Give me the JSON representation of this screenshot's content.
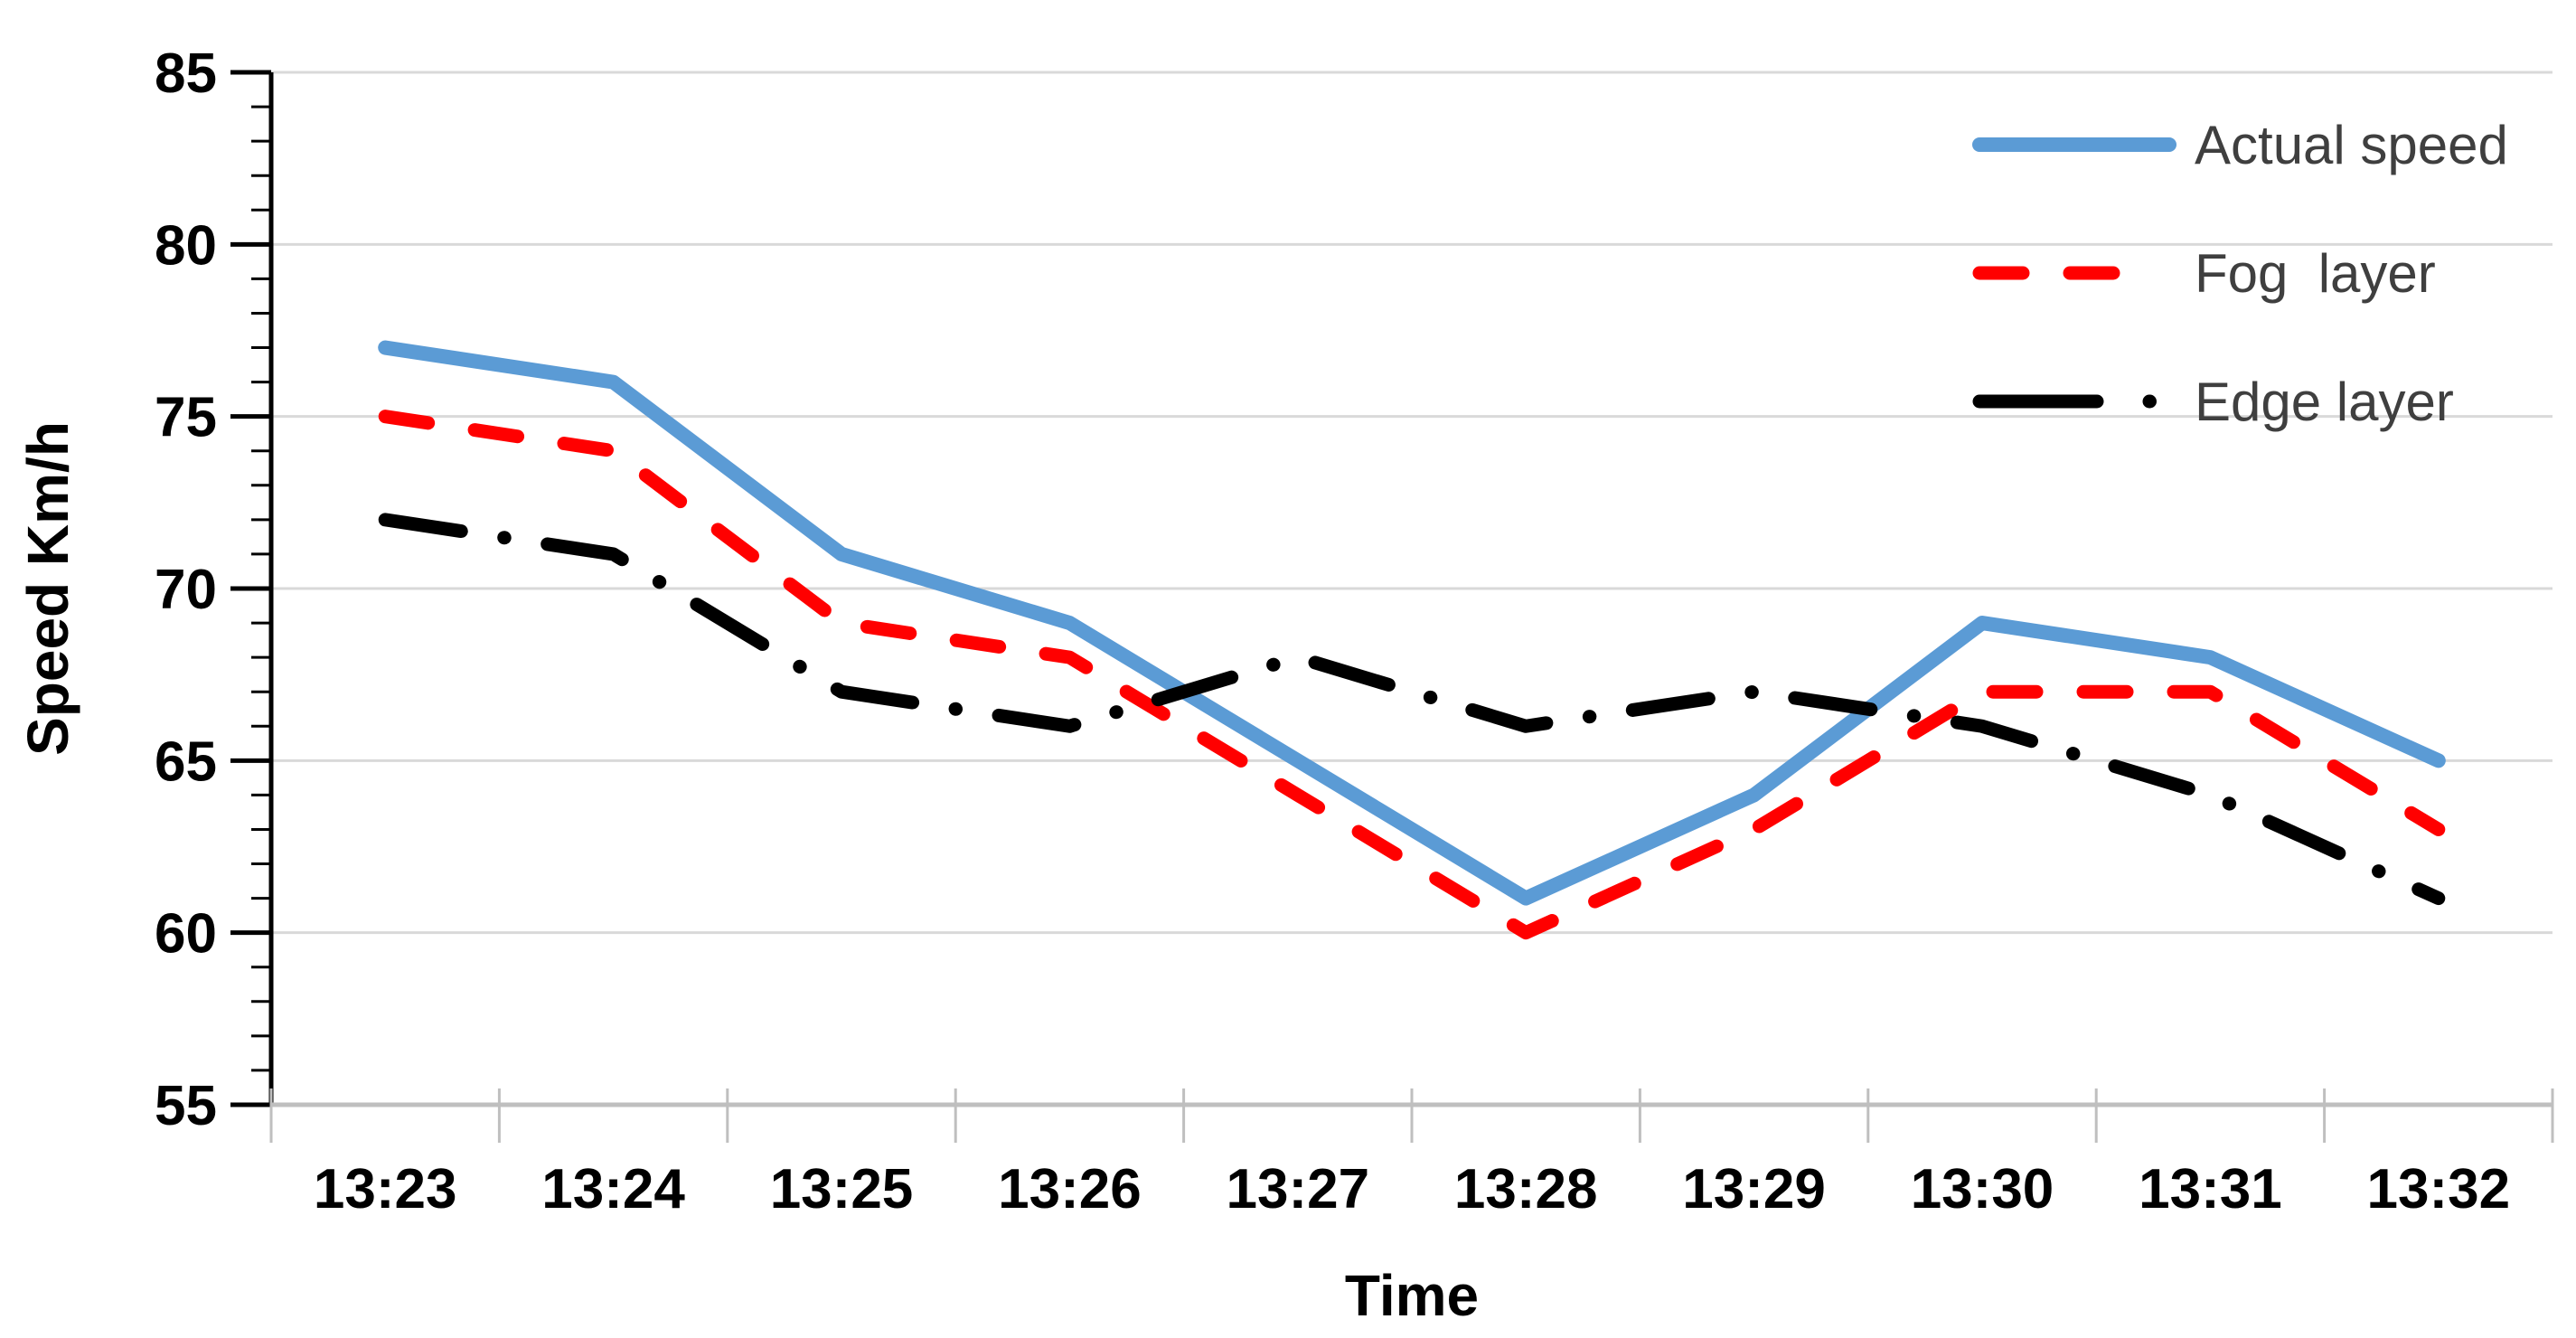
{
  "figure": {
    "background": "#FFFFFF"
  },
  "chart_data": {
    "type": "line",
    "title": "",
    "xlabel": "Time",
    "ylabel": "Speed Km/h",
    "categories": [
      "13:23",
      "13:24",
      "13:25",
      "13:26",
      "13:27",
      "13:28",
      "13:29",
      "13:30",
      "13:31",
      "13:32"
    ],
    "series": [
      {
        "name": "Actual speed",
        "color": "#5B9BD5",
        "style": "solid",
        "values": [
          77,
          76,
          71,
          69,
          65,
          61,
          64,
          69,
          68,
          65
        ]
      },
      {
        "name": "Fog  layer",
        "color": "#FF0000",
        "style": "dashed",
        "values": [
          75,
          74,
          69,
          68,
          64,
          60,
          63,
          67,
          67,
          63
        ]
      },
      {
        "name": "Edge layer",
        "color": "#000000",
        "style": "dash-dot",
        "values": [
          72,
          71,
          67,
          66,
          68,
          66,
          67,
          66,
          64,
          61
        ]
      }
    ],
    "ylim": [
      55,
      85
    ],
    "y_tick_step": 5,
    "y_minor_tick_step": 1,
    "y_ticks": [
      55,
      60,
      65,
      70,
      75,
      80,
      85
    ],
    "grid": true,
    "legend_position": "top-right",
    "colors": {
      "gridline": "#D9D9D9",
      "x_axis_line": "#BFBFBF",
      "y_axis_line": "#000000",
      "tick_label": "#000000",
      "axis_title": "#000000",
      "legend_text": "#3F3F3F"
    }
  }
}
